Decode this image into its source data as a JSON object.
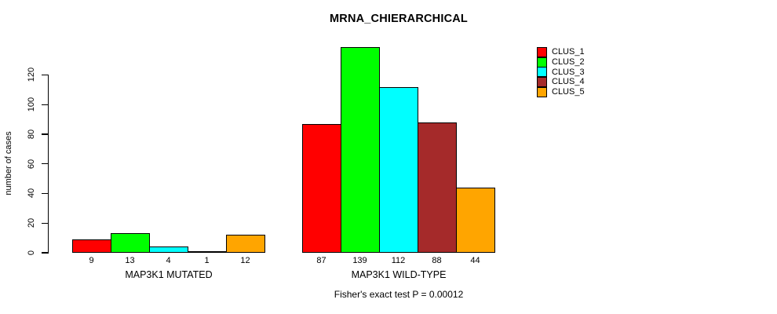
{
  "chart_data": {
    "type": "bar",
    "title": "MRNA_CHIERARCHICAL",
    "ylabel": "number of cases",
    "xlabel": "",
    "ylim": [
      0,
      139
    ],
    "yticks": [
      0,
      20,
      40,
      60,
      80,
      100,
      120
    ],
    "categories": [
      "MAP3K1 MUTATED",
      "MAP3K1 WILD-TYPE"
    ],
    "groups": [
      {
        "label": "MAP3K1 MUTATED",
        "values": [
          9,
          13,
          4,
          1,
          12
        ]
      },
      {
        "label": "MAP3K1 WILD-TYPE",
        "values": [
          87,
          139,
          112,
          88,
          44
        ]
      }
    ],
    "series": [
      {
        "name": "CLUS_1",
        "color": "#ff0000",
        "values": [
          9,
          87
        ]
      },
      {
        "name": "CLUS_2",
        "color": "#00ff00",
        "values": [
          13,
          139
        ]
      },
      {
        "name": "CLUS_3",
        "color": "#00ffff",
        "values": [
          4,
          112
        ]
      },
      {
        "name": "CLUS_4",
        "color": "#a52a2a",
        "values": [
          1,
          88
        ]
      },
      {
        "name": "CLUS_5",
        "color": "#ffa500",
        "values": [
          12,
          44
        ]
      }
    ],
    "legend": [
      {
        "label": "CLUS_1",
        "color": "#ff0000"
      },
      {
        "label": "CLUS_2",
        "color": "#00ff00"
      },
      {
        "label": "CLUS_3",
        "color": "#00ffff"
      },
      {
        "label": "CLUS_4",
        "color": "#a52a2a"
      },
      {
        "label": "CLUS_5",
        "color": "#ffa500"
      }
    ],
    "legend_position": "right",
    "grid": false,
    "bar_value_labels": true,
    "annotation": "Fisher's exact test P = 0.00012"
  }
}
